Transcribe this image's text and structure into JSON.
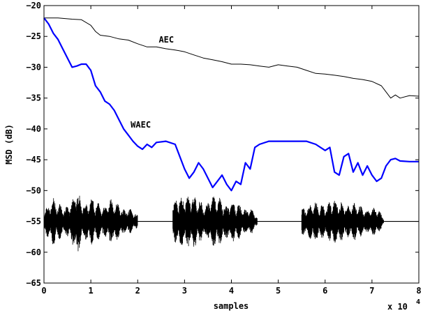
{
  "chart_data": {
    "type": "line",
    "title": "",
    "xlabel": "samples",
    "ylabel": "MSD (dB)",
    "x_multiplier_label": "x 10",
    "x_multiplier_exp": "4",
    "xlim": [
      0,
      8
    ],
    "ylim": [
      -65,
      -20
    ],
    "x_ticks": [
      0,
      1,
      2,
      3,
      4,
      5,
      6,
      7,
      8
    ],
    "y_ticks": [
      -20,
      -25,
      -30,
      -35,
      -40,
      -45,
      -50,
      -55,
      -60,
      -65
    ],
    "grid": false,
    "series": [
      {
        "name": "AEC",
        "color": "#000000",
        "x": [
          0,
          0.3,
          0.6,
          0.8,
          1.0,
          1.1,
          1.2,
          1.4,
          1.6,
          1.8,
          2.0,
          2.2,
          2.4,
          2.6,
          2.8,
          3.0,
          3.2,
          3.4,
          3.6,
          3.8,
          4.0,
          4.2,
          4.4,
          4.6,
          4.8,
          5.0,
          5.2,
          5.4,
          5.6,
          5.8,
          6.0,
          6.2,
          6.4,
          6.6,
          6.8,
          7.0,
          7.2,
          7.3,
          7.4,
          7.5,
          7.6,
          7.8,
          8.0
        ],
        "y": [
          -22.0,
          -22.0,
          -22.2,
          -22.3,
          -23.2,
          -24.2,
          -24.8,
          -25.0,
          -25.4,
          -25.6,
          -26.2,
          -26.7,
          -26.7,
          -27.0,
          -27.2,
          -27.5,
          -28.0,
          -28.5,
          -28.8,
          -29.1,
          -29.5,
          -29.5,
          -29.6,
          -29.8,
          -30.0,
          -29.6,
          -29.8,
          -30.0,
          -30.5,
          -31.0,
          -31.1,
          -31.3,
          -31.5,
          -31.8,
          -32.0,
          -32.3,
          -33.0,
          -34.0,
          -35.0,
          -34.5,
          -35.0,
          -34.6,
          -34.7
        ]
      },
      {
        "name": "WAEC",
        "color": "#0000ff",
        "x": [
          0,
          0.1,
          0.2,
          0.3,
          0.4,
          0.5,
          0.6,
          0.7,
          0.8,
          0.9,
          1.0,
          1.1,
          1.2,
          1.3,
          1.4,
          1.5,
          1.6,
          1.7,
          1.8,
          1.9,
          2.0,
          2.1,
          2.2,
          2.3,
          2.4,
          2.6,
          2.8,
          3.0,
          3.1,
          3.2,
          3.3,
          3.4,
          3.5,
          3.6,
          3.7,
          3.8,
          3.9,
          4.0,
          4.1,
          4.2,
          4.3,
          4.4,
          4.5,
          4.6,
          4.8,
          5.0,
          5.2,
          5.4,
          5.6,
          5.8,
          6.0,
          6.1,
          6.2,
          6.3,
          6.4,
          6.5,
          6.6,
          6.7,
          6.8,
          6.9,
          7.0,
          7.1,
          7.2,
          7.3,
          7.4,
          7.5,
          7.6,
          7.8,
          8.0
        ],
        "y": [
          -22.0,
          -23.0,
          -24.5,
          -25.5,
          -27.0,
          -28.5,
          -30.0,
          -29.8,
          -29.5,
          -29.5,
          -30.5,
          -33.0,
          -34.0,
          -35.5,
          -36.0,
          -37.0,
          -38.5,
          -40.0,
          -41.0,
          -42.0,
          -42.8,
          -43.3,
          -42.5,
          -43.0,
          -42.2,
          -42.0,
          -42.5,
          -46.5,
          -48.0,
          -47.0,
          -45.5,
          -46.5,
          -48.0,
          -49.5,
          -48.5,
          -47.5,
          -49.0,
          -50.0,
          -48.5,
          -49.0,
          -45.5,
          -46.5,
          -43.0,
          -42.5,
          -42.0,
          -42.0,
          -42.0,
          -42.0,
          -42.0,
          -42.5,
          -43.5,
          -43.0,
          -47.0,
          -47.5,
          -44.5,
          -44.0,
          -47.0,
          -45.5,
          -47.5,
          -46.0,
          -47.5,
          -48.5,
          -48.0,
          -46.0,
          -45.0,
          -44.8,
          -45.2,
          -45.3,
          -45.3
        ]
      }
    ],
    "annotations": [
      {
        "text": "AEC",
        "x": 2.45,
        "y": -26.0
      },
      {
        "text": "WAEC",
        "x": 1.85,
        "y": -39.8
      }
    ],
    "waveform": {
      "baseline": -55,
      "color": "#000000",
      "segments": [
        [
          0.0,
          2.0
        ],
        [
          2.75,
          4.55
        ],
        [
          5.5,
          7.25
        ]
      ],
      "envelope_x": [
        0.0,
        0.2,
        0.4,
        0.6,
        0.7,
        0.8,
        1.0,
        1.2,
        1.4,
        1.6,
        1.8,
        2.0,
        2.75,
        3.0,
        3.2,
        3.4,
        3.6,
        3.8,
        4.0,
        4.2,
        4.4,
        4.55,
        5.5,
        5.7,
        5.9,
        6.1,
        6.3,
        6.5,
        6.7,
        6.9,
        7.1,
        7.25
      ],
      "envelope_amp": [
        2.5,
        4.0,
        3.0,
        3.5,
        6.5,
        4.0,
        4.0,
        3.0,
        4.0,
        3.0,
        2.5,
        1.0,
        3.0,
        5.5,
        4.5,
        3.5,
        4.5,
        4.0,
        3.5,
        3.0,
        2.5,
        0.8,
        2.5,
        3.5,
        3.0,
        4.0,
        3.5,
        3.5,
        3.0,
        2.5,
        2.5,
        0.8
      ]
    }
  }
}
